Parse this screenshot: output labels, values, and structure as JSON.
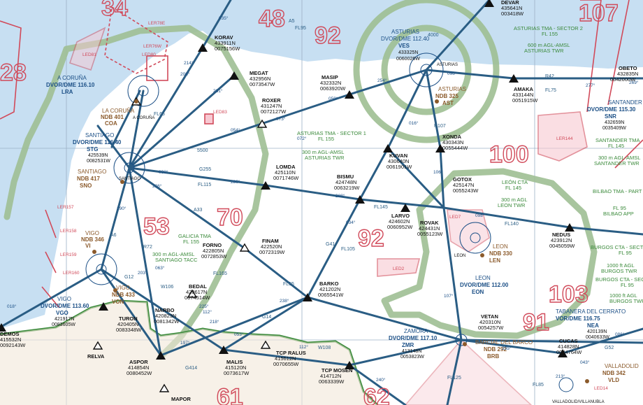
{
  "colors": {
    "sea": "#c7dff2",
    "land": "#ffffff",
    "tma_ring": "#9fbf93",
    "airway": "#2a5d84",
    "navaid_blue": "#1b4f86",
    "ndb_brown": "#8b5a2b",
    "area_red": "#d14a5a",
    "grid": "#9bb0c6",
    "border": "#3b8a3b",
    "pink_hatch": "#e06a8a"
  },
  "area_numbers": [
    {
      "text": "34"
    },
    {
      "text": "48"
    },
    {
      "text": "92"
    },
    {
      "text": "107"
    },
    {
      "text": "28"
    },
    {
      "text": "100"
    },
    {
      "text": "70"
    },
    {
      "text": "53"
    },
    {
      "text": "92"
    },
    {
      "text": "103"
    },
    {
      "text": "91"
    },
    {
      "text": "61"
    },
    {
      "text": "62"
    }
  ],
  "fixes": [
    {
      "name": "DEVAR",
      "lat": "435641N",
      "lon": "003418W"
    },
    {
      "name": "KORAV",
      "lat": "433911N",
      "lon": "0075156W"
    },
    {
      "name": "MEGAT",
      "lat": "432956N",
      "lon": "0073547W"
    },
    {
      "name": "MASIP",
      "lat": "432332N",
      "lon": "0063920W"
    },
    {
      "name": "ROXER",
      "lat": "431247N",
      "lon": "0072127W"
    },
    {
      "name": "AMAKA",
      "lat": "433144N",
      "lon": "0051915W"
    },
    {
      "name": "OBETO",
      "lat": "432835N",
      "lon": "0042000W"
    },
    {
      "name": "XONDA",
      "lat": "430343N",
      "lon": "0055444W"
    },
    {
      "name": "KUVAN",
      "lat": "430640N",
      "lon": "0061901W"
    },
    {
      "name": "LOMDA",
      "lat": "425110N",
      "lon": "0071746W"
    },
    {
      "name": "BISMU",
      "lat": "424748N",
      "lon": "0063219W"
    },
    {
      "name": "GOTOX",
      "lat": "425147N",
      "lon": "0055243W"
    },
    {
      "name": "LARVO",
      "lat": "424602N",
      "lon": "0060952W"
    },
    {
      "name": "ROVAK",
      "lat": "424431N",
      "lon": "0055123W"
    },
    {
      "name": "NEDUS",
      "lat": "423912N",
      "lon": "0045059W"
    },
    {
      "name": "FORNO",
      "lat": "422805N",
      "lon": "0072853W"
    },
    {
      "name": "FINAM",
      "lat": "422520N",
      "lon": "0072319W"
    },
    {
      "name": "BARKO",
      "lat": "421202N",
      "lon": "0065541W"
    },
    {
      "name": "BEDAL",
      "lat": "420617N",
      "lon": "0074514W"
    },
    {
      "name": "NARBO",
      "lat": "420823N",
      "lon": "0081342W"
    },
    {
      "name": "TURON",
      "lat": "420405N",
      "lon": "0083348W"
    },
    {
      "name": "VETAN",
      "lat": "420310N",
      "lon": "0054257W"
    },
    {
      "name": "CUCAS",
      "lat": "414828N",
      "lon": "0044764W"
    },
    {
      "name": "ASPOR",
      "lat": "414854N",
      "lon": "0080452W"
    },
    {
      "name": "MALIS",
      "lat": "415120N",
      "lon": "0073617W"
    },
    {
      "name": "TCP RALUS",
      "lat": "415612N",
      "lon": "0070655W"
    },
    {
      "name": "TCP MOSEN",
      "lat": "414712N",
      "lon": "0063339W"
    },
    {
      "name": "DEMOS",
      "lat": "415532N",
      "lon": "0092143W"
    }
  ],
  "other_points": {
    "relva": "RELVA",
    "mapor": "MAPOR",
    "a_coruna": "A CORUÑA",
    "santiago": "SANTIAGO",
    "asturias": "ASTURIAS",
    "leon": "LEON",
    "valladolid": "VALLADOLID/VILLANUBLA"
  },
  "navaids": [
    {
      "line1": "ASTURIAS",
      "line2": "DVOR/DME 112.40",
      "line3": "VES",
      "line4": "433325N",
      "line5": "0060026W"
    },
    {
      "line1": "A CORUÑA",
      "line2": "DVOR/DME 116.10",
      "line3": "LRA"
    },
    {
      "line1": "SANTIAGO",
      "line2": "DVOR/DME 116.40",
      "line3": "STG",
      "line4": "425539N",
      "line5": "0082531W"
    },
    {
      "line1": "VIGO",
      "line2": "DVOR/DME 113.60",
      "line3": "VGO",
      "line4": "421917N",
      "line5": "0083605W"
    },
    {
      "line1": "LEON",
      "line2": "DVOR/DME 112.00",
      "line3": "EON"
    },
    {
      "line1": "ZAMORA",
      "line2": "DVOR/DME 117.10",
      "line3": "ZMR",
      "line4": "413148N",
      "line5": "0053823W"
    },
    {
      "line1": "SANTANDER",
      "line2": "DVOR/DME 115.30",
      "line3": "SNR",
      "line4": "432659N",
      "line5": "0035409W"
    },
    {
      "line1": "TABANERA DEL CERRATO",
      "line2": "VOR/DME 116.75",
      "line3": "NEA",
      "line4": "420139N",
      "line5": "0040633W"
    }
  ],
  "ndbs": [
    {
      "line1": "ASTURIAS",
      "line2": "NDB 325",
      "line3": "AST"
    },
    {
      "line1": "LA CORUÑA",
      "line2": "NDB 401",
      "line3": "COA"
    },
    {
      "line1": "SANTIAGO",
      "line2": "NDB 417",
      "line3": "SNO"
    },
    {
      "line1": "VIGO",
      "line2": "NDB 346",
      "line3": "VI"
    },
    {
      "line1": "VIGO",
      "line2": "NDB 433",
      "line3": "VON"
    },
    {
      "line1": "LEON",
      "line2": "NDB 330",
      "line3": "LEN"
    },
    {
      "line1": "BARCIAL DEL BARCO",
      "line2": "NDB 292",
      "line3": "BRB"
    },
    {
      "line1": "VALLADOLID",
      "line2": "NDB 342",
      "line3": "VLD"
    }
  ],
  "airspace_notes": [
    {
      "line1": "ASTURIAS TMA - SECTOR 2",
      "line2": "FL 155"
    },
    {
      "line1": "600 m AGL-AMSL",
      "line2": "ASTURIAS TWR"
    },
    {
      "line1": "ASTURIAS TMA - SECTOR 1",
      "line2": "FL 155"
    },
    {
      "line1": "300 m AGL-AMSL",
      "line2": "ASTURIAS TWR"
    },
    {
      "line1": "LEÓN CTA",
      "line2": "FL 145"
    },
    {
      "line1": "300 m AGL",
      "line2": "LEON TWR"
    },
    {
      "line1": "GALICIA TMA",
      "line2": "FL 155"
    },
    {
      "line1": "300 m AGL-AMSL",
      "line2": "SANTIAGO TACC"
    },
    {
      "line1": "SANTANDER TMA",
      "line2": "FL 145"
    },
    {
      "line1": "300 m AGL-AMSL",
      "line2": "SANTANDER TWR"
    },
    {
      "line1": "BILBAO TMA - PART",
      "line2": ""
    },
    {
      "line1": "FL 95",
      "line2": "BILBAO APP"
    },
    {
      "line1": "BURGOS CTA - SECTOR",
      "line2": "FL 95"
    },
    {
      "line1": "1000 ft AGL",
      "line2": "BURGOS TWR"
    },
    {
      "line1": "BURGOS CTA - SECTOR",
      "line2": "FL 95"
    },
    {
      "line1": "1000 ft AGL",
      "line2": "BURGOS TWR"
    }
  ],
  "restricted_areas": [
    "LER78E",
    "LER76W",
    "LED81",
    "LED80",
    "LED83",
    "LER144",
    "LER157",
    "LER158",
    "LER159",
    "LER160",
    "LED2",
    "LED7",
    "LED14"
  ],
  "airway_labels": [
    {
      "text": "A5"
    },
    {
      "text": "FL95"
    },
    {
      "text": "G255"
    },
    {
      "text": "FL115"
    },
    {
      "text": "FL145"
    },
    {
      "text": "FL105"
    },
    {
      "text": "FL140"
    },
    {
      "text": "G41"
    },
    {
      "text": "FL125"
    },
    {
      "text": "R42"
    },
    {
      "text": "FL75"
    },
    {
      "text": "5500"
    },
    {
      "text": "A33"
    },
    {
      "text": "FL55"
    },
    {
      "text": "W106"
    },
    {
      "text": "G14"
    },
    {
      "text": "FL165"
    },
    {
      "text": "R72"
    },
    {
      "text": "G414"
    },
    {
      "text": "W108"
    },
    {
      "text": "FL65"
    },
    {
      "text": "G52"
    },
    {
      "text": "FL85"
    },
    {
      "text": "R107"
    },
    {
      "text": "A6"
    },
    {
      "text": "4000"
    },
    {
      "text": "G12"
    }
  ],
  "courses": [
    "035°",
    "208°",
    "214°",
    "231°",
    "059°",
    "054°",
    "073°",
    "098°",
    "277°",
    "280°",
    "254°",
    "098°",
    "106°",
    "107°",
    "226°",
    "225°",
    "190°",
    "203°",
    "018°",
    "063°",
    "238°",
    "053°",
    "112°",
    "288°",
    "112°",
    "034°",
    "218°",
    "240°",
    "098°",
    "086°",
    "235°",
    "043°",
    "213°",
    "016°",
    "269°",
    "072°",
    "197°"
  ]
}
